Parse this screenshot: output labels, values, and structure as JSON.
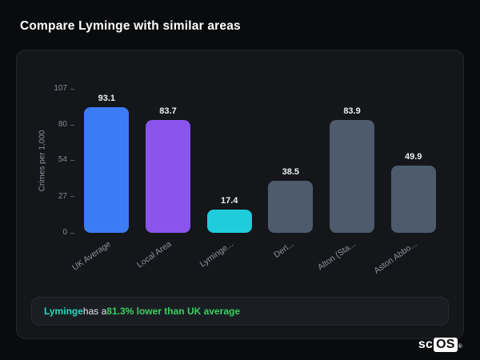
{
  "page": {
    "title": "Compare Lyminge with similar areas"
  },
  "chart_data": {
    "type": "bar",
    "categories": [
      "UK Average",
      "Local Area",
      "Lyminge...",
      "Derl...",
      "Alton (Sta...",
      "Aston Abbo..."
    ],
    "values": [
      93.1,
      83.7,
      17.4,
      38.5,
      83.9,
      49.9
    ],
    "value_labels": [
      "93.1",
      "83.7",
      "17.4",
      "38.5",
      "83.9",
      "49.9"
    ],
    "bar_colors": [
      "#3b7cf5",
      "#8a55ec",
      "#1fccdc",
      "#4e5b6d",
      "#4e5b6d",
      "#4e5b6d"
    ],
    "title": "",
    "xlabel": "",
    "ylabel": "Crimes per 1,000",
    "yticks": [
      0,
      27,
      54,
      80,
      107
    ],
    "ylim": [
      0,
      107
    ],
    "grid": false,
    "legend": false
  },
  "callout": {
    "area": "Lyminge",
    "mid": " has a ",
    "stat": "81.3% lower than UK average",
    "area_color": "#2dd4bf",
    "stat_color": "#3ad05f"
  },
  "logo": {
    "prefix": "sc",
    "suffix": "OS",
    "reg": "®"
  }
}
